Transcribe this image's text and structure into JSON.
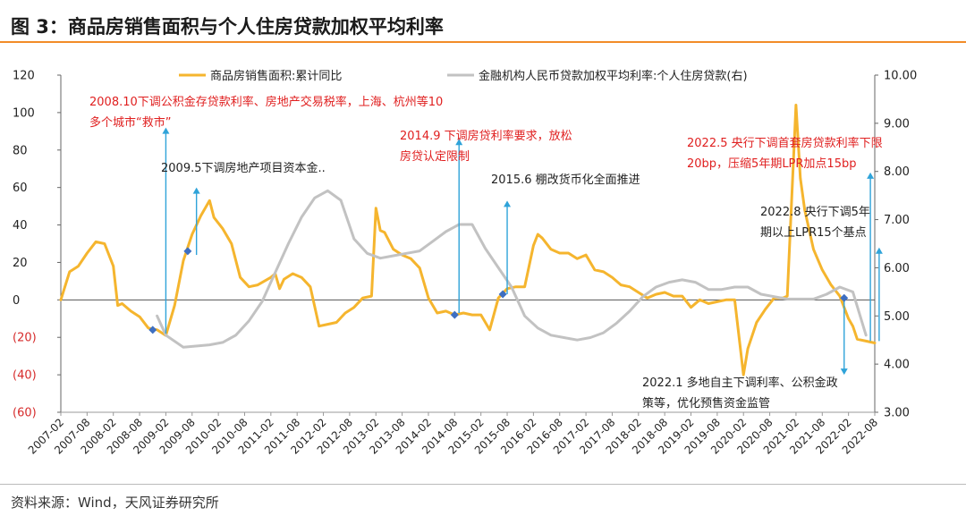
{
  "figure_title": "图 3：商品房销售面积与个人住房贷款加权平均利率",
  "source": "资料来源：Wind，天风证券研究所",
  "colors": {
    "accent": "#f28c28",
    "series_a": "#f5b52e",
    "series_b": "#c2c2c2",
    "arrow": "#2fa3d9",
    "marker": "#3e6fc1",
    "annotation_red": "#e02020",
    "negative_tick": "#d62b2b"
  },
  "chart_data": {
    "type": "line",
    "title": "",
    "left_axis": {
      "ylim": [
        -60,
        120
      ],
      "ticks": [
        "120",
        "100",
        "80",
        "60",
        "40",
        "20",
        "0",
        "(20)",
        "(40)",
        "(60)"
      ]
    },
    "right_axis": {
      "ylim": [
        3.0,
        10.0
      ],
      "ticks": [
        "10.00",
        "9.00",
        "8.00",
        "7.00",
        "6.00",
        "5.00",
        "4.00",
        "3.00"
      ]
    },
    "x_ticks": [
      "2007-02",
      "2007-08",
      "2008-02",
      "2008-08",
      "2009-02",
      "2009-08",
      "2010-02",
      "2010-08",
      "2011-02",
      "2011-08",
      "2012-02",
      "2012-08",
      "2013-02",
      "2013-08",
      "2014-02",
      "2014-08",
      "2015-02",
      "2015-08",
      "2016-02",
      "2016-08",
      "2017-02",
      "2017-08",
      "2018-02",
      "2018-08",
      "2019-02",
      "2019-08",
      "2020-02",
      "2020-08",
      "2021-02",
      "2021-08",
      "2022-02",
      "2022-08"
    ],
    "series": [
      {
        "name": "商品房销售面积:累计同比",
        "axis": "left",
        "points": [
          [
            "2007-02",
            0
          ],
          [
            "2007-04",
            15
          ],
          [
            "2007-06",
            18
          ],
          [
            "2007-08",
            25
          ],
          [
            "2007-10",
            31
          ],
          [
            "2007-12",
            30
          ],
          [
            "2008-02",
            18
          ],
          [
            "2008-03",
            -3
          ],
          [
            "2008-04",
            -2
          ],
          [
            "2008-06",
            -6
          ],
          [
            "2008-08",
            -9
          ],
          [
            "2008-10",
            -15
          ],
          [
            "2008-12",
            -16
          ],
          [
            "2009-02",
            -19
          ],
          [
            "2009-04",
            -3
          ],
          [
            "2009-06",
            21
          ],
          [
            "2009-08",
            35
          ],
          [
            "2009-10",
            45
          ],
          [
            "2009-12",
            53
          ],
          [
            "2010-01",
            44
          ],
          [
            "2010-03",
            38
          ],
          [
            "2010-05",
            30
          ],
          [
            "2010-07",
            12
          ],
          [
            "2010-09",
            7
          ],
          [
            "2010-11",
            8
          ],
          [
            "2011-02",
            12
          ],
          [
            "2011-03",
            14
          ],
          [
            "2011-04",
            6
          ],
          [
            "2011-05",
            11
          ],
          [
            "2011-07",
            14
          ],
          [
            "2011-09",
            12
          ],
          [
            "2011-11",
            7
          ],
          [
            "2012-01",
            -14
          ],
          [
            "2012-03",
            -13
          ],
          [
            "2012-05",
            -12
          ],
          [
            "2012-07",
            -7
          ],
          [
            "2012-09",
            -4
          ],
          [
            "2012-11",
            1
          ],
          [
            "2013-01",
            2
          ],
          [
            "2013-02",
            49
          ],
          [
            "2013-03",
            37
          ],
          [
            "2013-04",
            36
          ],
          [
            "2013-06",
            27
          ],
          [
            "2013-08",
            24
          ],
          [
            "2013-10",
            22
          ],
          [
            "2013-12",
            17
          ],
          [
            "2014-02",
            1
          ],
          [
            "2014-04",
            -7
          ],
          [
            "2014-06",
            -6
          ],
          [
            "2014-08",
            -8
          ],
          [
            "2014-10",
            -7
          ],
          [
            "2014-12",
            -8
          ],
          [
            "2015-02",
            -8
          ],
          [
            "2015-04",
            -16
          ],
          [
            "2015-06",
            1
          ],
          [
            "2015-08",
            6
          ],
          [
            "2015-10",
            7
          ],
          [
            "2015-12",
            7
          ],
          [
            "2016-02",
            29
          ],
          [
            "2016-03",
            35
          ],
          [
            "2016-04",
            33
          ],
          [
            "2016-06",
            27
          ],
          [
            "2016-08",
            25
          ],
          [
            "2016-10",
            25
          ],
          [
            "2016-12",
            22
          ],
          [
            "2017-02",
            24
          ],
          [
            "2017-04",
            16
          ],
          [
            "2017-06",
            15
          ],
          [
            "2017-08",
            12
          ],
          [
            "2017-10",
            8
          ],
          [
            "2017-12",
            7
          ],
          [
            "2018-02",
            4
          ],
          [
            "2018-04",
            1
          ],
          [
            "2018-06",
            3
          ],
          [
            "2018-08",
            4
          ],
          [
            "2018-10",
            2
          ],
          [
            "2018-12",
            2
          ],
          [
            "2019-02",
            -4
          ],
          [
            "2019-04",
            0
          ],
          [
            "2019-06",
            -2
          ],
          [
            "2019-08",
            -1
          ],
          [
            "2019-10",
            0
          ],
          [
            "2019-12",
            0
          ],
          [
            "2020-02",
            -40
          ],
          [
            "2020-03",
            -26
          ],
          [
            "2020-05",
            -12
          ],
          [
            "2020-07",
            -5
          ],
          [
            "2020-09",
            1
          ],
          [
            "2020-11",
            1
          ],
          [
            "2020-12",
            2
          ],
          [
            "2021-02",
            104
          ],
          [
            "2021-03",
            65
          ],
          [
            "2021-04",
            48
          ],
          [
            "2021-06",
            27
          ],
          [
            "2021-08",
            16
          ],
          [
            "2021-10",
            8
          ],
          [
            "2021-12",
            2
          ],
          [
            "2022-02",
            -10
          ],
          [
            "2022-03",
            -14
          ],
          [
            "2022-04",
            -21
          ],
          [
            "2022-06",
            -22
          ],
          [
            "2022-08",
            -23
          ]
        ]
      },
      {
        "name": "金融机构人民币贷款加权平均利率:个人住房贷款(右)",
        "axis": "right",
        "points": [
          [
            "2008-12",
            5.0
          ],
          [
            "2009-02",
            4.6
          ],
          [
            "2009-06",
            4.35
          ],
          [
            "2009-12",
            4.4
          ],
          [
            "2010-03",
            4.45
          ],
          [
            "2010-06",
            4.6
          ],
          [
            "2010-09",
            4.9
          ],
          [
            "2010-12",
            5.3
          ],
          [
            "2011-03",
            5.9
          ],
          [
            "2011-06",
            6.5
          ],
          [
            "2011-09",
            7.05
          ],
          [
            "2011-12",
            7.45
          ],
          [
            "2012-03",
            7.6
          ],
          [
            "2012-06",
            7.4
          ],
          [
            "2012-09",
            6.6
          ],
          [
            "2012-12",
            6.3
          ],
          [
            "2013-03",
            6.2
          ],
          [
            "2013-06",
            6.25
          ],
          [
            "2013-09",
            6.3
          ],
          [
            "2013-12",
            6.35
          ],
          [
            "2014-03",
            6.55
          ],
          [
            "2014-06",
            6.75
          ],
          [
            "2014-09",
            6.9
          ],
          [
            "2014-12",
            6.9
          ],
          [
            "2015-03",
            6.4
          ],
          [
            "2015-06",
            6.0
          ],
          [
            "2015-09",
            5.6
          ],
          [
            "2015-12",
            5.0
          ],
          [
            "2016-03",
            4.75
          ],
          [
            "2016-06",
            4.6
          ],
          [
            "2016-09",
            4.55
          ],
          [
            "2016-12",
            4.5
          ],
          [
            "2017-03",
            4.55
          ],
          [
            "2017-06",
            4.65
          ],
          [
            "2017-09",
            4.85
          ],
          [
            "2017-12",
            5.1
          ],
          [
            "2018-03",
            5.4
          ],
          [
            "2018-06",
            5.6
          ],
          [
            "2018-09",
            5.7
          ],
          [
            "2018-12",
            5.75
          ],
          [
            "2019-03",
            5.7
          ],
          [
            "2019-06",
            5.55
          ],
          [
            "2019-09",
            5.55
          ],
          [
            "2019-12",
            5.6
          ],
          [
            "2020-03",
            5.6
          ],
          [
            "2020-06",
            5.45
          ],
          [
            "2020-09",
            5.4
          ],
          [
            "2020-12",
            5.35
          ],
          [
            "2021-03",
            5.35
          ],
          [
            "2021-06",
            5.35
          ],
          [
            "2021-09",
            5.45
          ],
          [
            "2021-12",
            5.6
          ],
          [
            "2022-03",
            5.5
          ],
          [
            "2022-06",
            4.6
          ]
        ]
      }
    ],
    "markers": [
      [
        "2008-11",
        -16
      ],
      [
        "2009-07",
        26
      ],
      [
        "2014-08",
        -8
      ],
      [
        "2015-07",
        3
      ],
      [
        "2022-01",
        1
      ]
    ],
    "annotations": [
      {
        "id": "a2008",
        "color": "red",
        "lines": [
          "2008.10下调公积金存贷款利率、房地产交易税率，上海、杭州等10",
          "多个城市“救市”"
        ]
      },
      {
        "id": "a2009",
        "color": "black",
        "lines": [
          "2009.5下调房地产项目资本金.."
        ]
      },
      {
        "id": "a2014",
        "color": "red",
        "lines": [
          "2014.9 下调房贷利率要求，放松",
          "房贷认定限制"
        ]
      },
      {
        "id": "a2015",
        "color": "black",
        "lines": [
          "2015.6 棚改货币化全面推进"
        ]
      },
      {
        "id": "a2022may",
        "color": "red",
        "lines": [
          "2022.5 央行下调首套房贷款利率下限",
          "20bp，压缩5年期LPR加点15bp"
        ]
      },
      {
        "id": "a2022aug",
        "color": "black",
        "lines": [
          "2022.8 央行下调5年",
          "期以上LPR15个基点"
        ]
      },
      {
        "id": "a2022jan",
        "color": "black",
        "lines": [
          "2022.1 多地自主下调利率、公积金政",
          "策等，优化预售资金监管"
        ]
      }
    ]
  }
}
